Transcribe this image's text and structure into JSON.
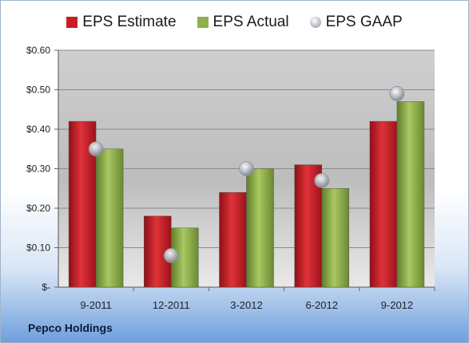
{
  "chart_data": {
    "type": "bar",
    "categories": [
      "9-2011",
      "12-2011",
      "3-2012",
      "6-2012",
      "9-2012"
    ],
    "series": [
      {
        "name": "EPS Estimate",
        "kind": "bar",
        "color": "#c81e28",
        "values": [
          0.42,
          0.18,
          0.24,
          0.31,
          0.42
        ]
      },
      {
        "name": "EPS Actual",
        "kind": "bar",
        "color": "#8fb04a",
        "values": [
          0.35,
          0.15,
          0.3,
          0.25,
          0.47
        ]
      },
      {
        "name": "EPS GAAP",
        "kind": "marker",
        "color": "#b5bcc6",
        "values": [
          0.35,
          0.08,
          0.3,
          0.27,
          0.49
        ]
      }
    ],
    "ylim": [
      0,
      0.6
    ],
    "yticks": [
      0,
      0.1,
      0.2,
      0.3,
      0.4,
      0.5,
      0.6
    ],
    "ytick_labels": [
      "$-",
      "$0.10",
      "$0.20",
      "$0.30",
      "$0.40",
      "$0.50",
      "$0.60"
    ],
    "grid": true,
    "legend_position": "top"
  },
  "legend": {
    "estimate": "EPS Estimate",
    "actual": "EPS Actual",
    "gaap": "EPS GAAP"
  },
  "company_label": "Pepco Holdings"
}
